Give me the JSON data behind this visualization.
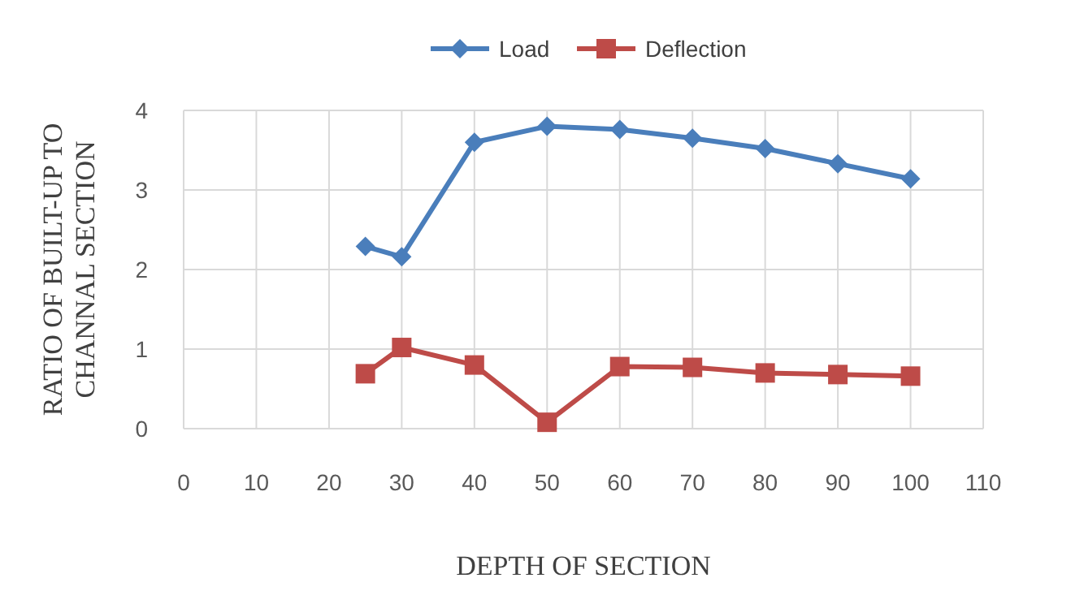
{
  "chart_data": {
    "type": "line",
    "xlabel": "DEPTH OF SECTION",
    "ylabel": "RATIO OF BUILT-UP TO CHANNAL SECTION",
    "x": [
      25,
      30,
      40,
      50,
      60,
      70,
      80,
      90,
      100
    ],
    "series": [
      {
        "name": "Load",
        "color": "#4a7ebb",
        "marker": "diamond",
        "values": [
          2.29,
          2.16,
          3.6,
          3.8,
          3.76,
          3.65,
          3.52,
          3.33,
          3.14
        ]
      },
      {
        "name": "Deflection",
        "color": "#be4b48",
        "marker": "square",
        "values": [
          0.69,
          1.02,
          0.8,
          0.08,
          0.78,
          0.77,
          0.7,
          0.68,
          0.66
        ]
      }
    ],
    "xlim": [
      0,
      110
    ],
    "xticks": [
      0,
      10,
      20,
      30,
      40,
      50,
      60,
      70,
      80,
      90,
      100,
      110
    ],
    "ylim": [
      0,
      4
    ],
    "yticks": [
      0,
      1,
      2,
      3,
      4
    ],
    "grid": true,
    "legend": "top",
    "line_style": "solid"
  }
}
